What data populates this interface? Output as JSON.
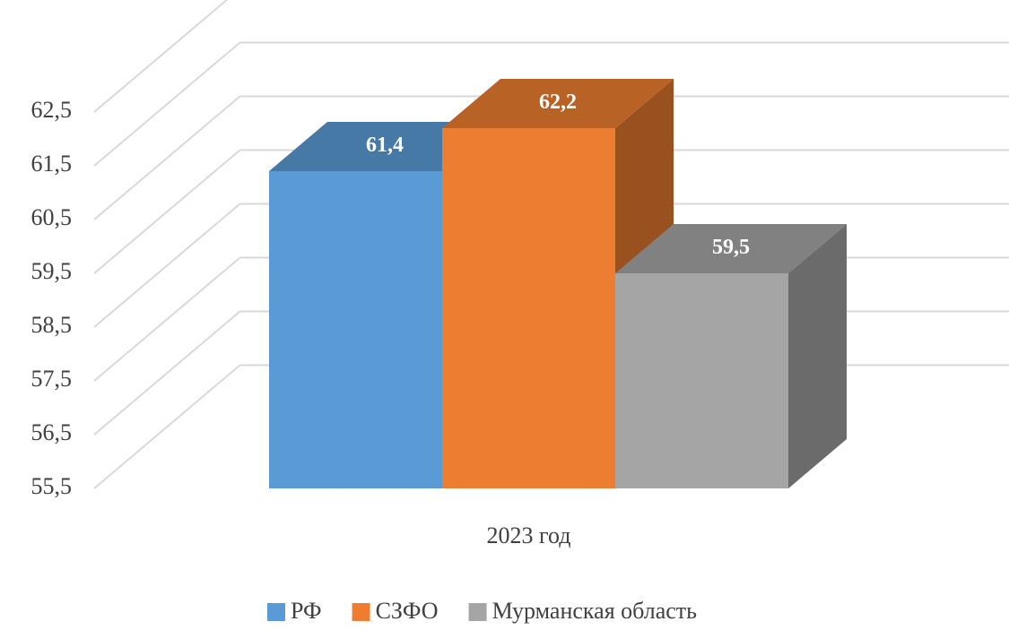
{
  "chart_data": {
    "type": "bar3d",
    "categories": [
      "2023 год"
    ],
    "series": [
      {
        "name": "РФ",
        "color": "#5b9bd5",
        "values": [
          61.4
        ],
        "value_labels": [
          "61,4"
        ]
      },
      {
        "name": "СЗФО",
        "color": "#ed7d31",
        "values": [
          62.2
        ],
        "value_labels": [
          "62,2"
        ]
      },
      {
        "name": "Мурманская область",
        "color": "#a5a5a5",
        "values": [
          59.5
        ],
        "value_labels": [
          "59,5"
        ]
      }
    ],
    "ylim": [
      55.5,
      62.5
    ],
    "yticks": [
      {
        "value": 55.5,
        "label": "55,5"
      },
      {
        "value": 56.5,
        "label": "56,5"
      },
      {
        "value": 57.5,
        "label": "57,5"
      },
      {
        "value": 58.5,
        "label": "58,5"
      },
      {
        "value": 59.5,
        "label": "59,5"
      },
      {
        "value": 60.5,
        "label": "60,5"
      },
      {
        "value": 61.5,
        "label": "61,5"
      },
      {
        "value": 62.5,
        "label": "62,5"
      }
    ],
    "grid": true,
    "legend": "bottom"
  }
}
